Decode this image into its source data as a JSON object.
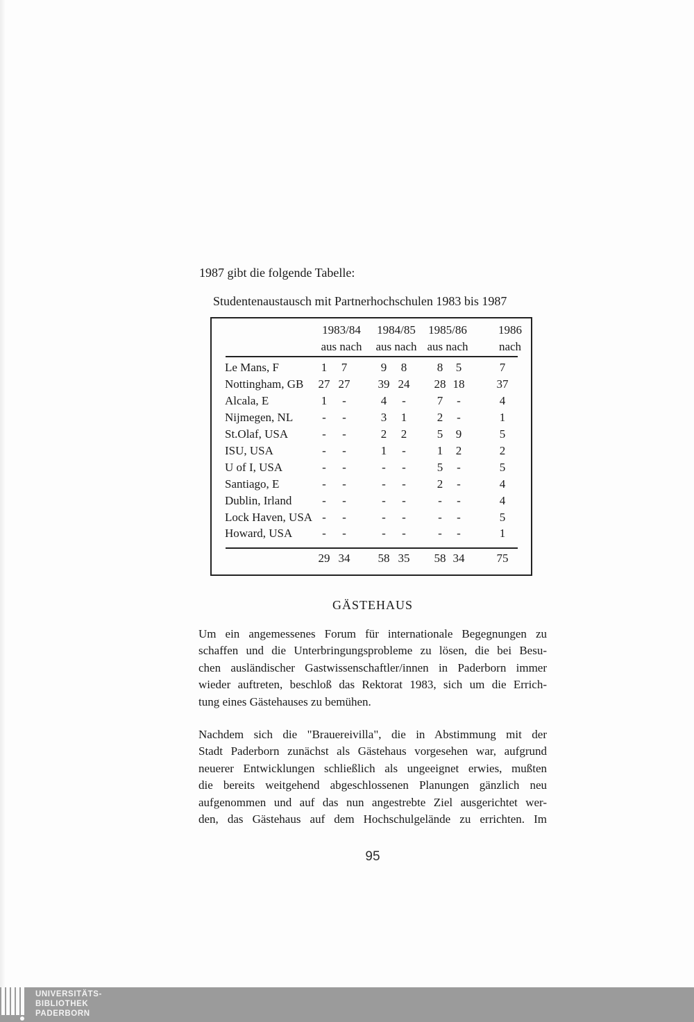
{
  "document": {
    "intro_line": "1987 gibt die folgende Tabelle:",
    "page_number": "95"
  },
  "table": {
    "title": "Studentenaustausch mit Partnerhochschulen 1983 bis 1987",
    "column_groups": [
      {
        "year": "1983/84",
        "sub": "aus nach"
      },
      {
        "year": "1984/85",
        "sub": "aus nach"
      },
      {
        "year": "1985/86",
        "sub": "aus nach"
      },
      {
        "year": "1986",
        "sub": "nach"
      }
    ],
    "rows": [
      {
        "label": "Le Mans, F",
        "values": [
          "1",
          "7",
          "9",
          "8",
          "8",
          "5",
          "7"
        ]
      },
      {
        "label": "Nottingham, GB",
        "values": [
          "27",
          "27",
          "39",
          "24",
          "28",
          "18",
          "37"
        ]
      },
      {
        "label": "Alcala, E",
        "values": [
          "1",
          "-",
          "4",
          "-",
          "7",
          "-",
          "4"
        ]
      },
      {
        "label": "Nijmegen, NL",
        "values": [
          "-",
          "-",
          "3",
          "1",
          "2",
          "-",
          "1"
        ]
      },
      {
        "label": "St.Olaf, USA",
        "values": [
          "-",
          "-",
          "2",
          "2",
          "5",
          "9",
          "5"
        ]
      },
      {
        "label": "ISU, USA",
        "values": [
          "-",
          "-",
          "1",
          "-",
          "1",
          "2",
          "2"
        ]
      },
      {
        "label": "U of I, USA",
        "values": [
          "-",
          "-",
          "-",
          "-",
          "5",
          "-",
          "5"
        ]
      },
      {
        "label": "Santiago, E",
        "values": [
          "-",
          "-",
          "-",
          "-",
          "2",
          "-",
          "4"
        ]
      },
      {
        "label": "Dublin, Irland",
        "values": [
          "-",
          "-",
          "-",
          "-",
          "-",
          "-",
          "4"
        ]
      },
      {
        "label": "Lock Haven, USA",
        "values": [
          "-",
          "-",
          "-",
          "-",
          "-",
          "-",
          "5"
        ]
      },
      {
        "label": "Howard, USA",
        "values": [
          "-",
          "-",
          "-",
          "-",
          "-",
          "-",
          "1"
        ]
      }
    ],
    "totals": [
      "29",
      "34",
      "58",
      "35",
      "58",
      "34",
      "75"
    ]
  },
  "section": {
    "heading": "GÄSTEHAUS",
    "paragraph1_lines": [
      "Um ein angemessenes Forum für internationale Begegnungen zu",
      "schaffen und die Unterbringungsprobleme zu lösen, die bei Besu-",
      "chen ausländischer Gastwissenschaftler/innen in Paderborn immer",
      "wieder auftreten, beschloß das Rektorat 1983, sich um die Errich-",
      "tung eines Gästehauses zu bemühen."
    ],
    "paragraph2_lines": [
      "Nachdem sich die \"Brauereivilla\", die in Abstimmung mit der",
      "Stadt Paderborn zunächst als Gästehaus vorgesehen war, aufgrund",
      "neuerer Entwicklungen schließlich als ungeeignet erwies, mußten",
      "die bereits weitgehend abgeschlossenen Planungen gänzlich neu",
      "aufgenommen und auf das nun angestrebte Ziel ausgerichtet wer-",
      "den, das Gästehaus auf dem Hochschulgelände zu errichten. Im"
    ]
  },
  "footer": {
    "bar_color": "#9b9b9b",
    "library_name_lines": [
      "UNIVERSITÄTS-",
      "BIBLIOTHEK",
      "PADERBORN"
    ]
  }
}
